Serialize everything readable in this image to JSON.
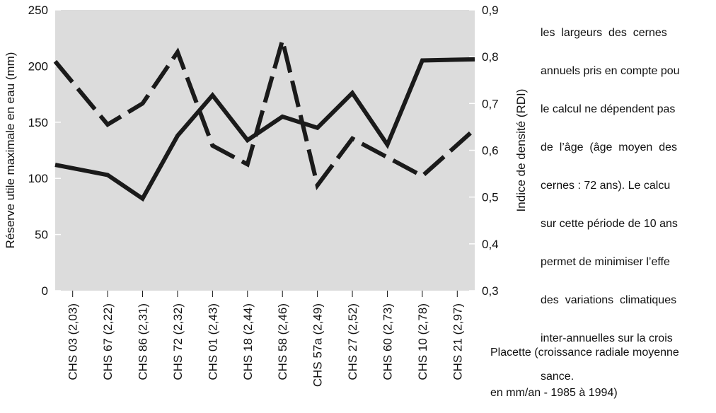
{
  "chart_data": {
    "type": "line",
    "categories": [
      "CHS 03 (2,03)",
      "CHS 67 (2,22)",
      "CHS 86 (2,31)",
      "CHS 72 (2,32)",
      "CHS 01 (2,43)",
      "CHS 18 (2,44)",
      "CHS 58 (2,46)",
      "CHS 57a (2,49)",
      "CHS 27 (2,52)",
      "CHS 60 (2,73)",
      "CHS 10 (2,78)",
      "CHS 21 (2,97)"
    ],
    "ylabel_left": "Réserve utile maximale en eau (mm)",
    "ylabel_right": "Indice de densité (RDI)",
    "xlabel": "Placette (croissance radiale moyenne en mm/an - 1985 à 1994)",
    "ylim_left": [
      0,
      250
    ],
    "ylim_right": [
      0.3,
      0.9
    ],
    "yticks_left": [
      "0",
      "50",
      "100",
      "150",
      "200",
      "250"
    ],
    "yticks_right": [
      "0,3",
      "0,4",
      "0,5",
      "0,6",
      "0,7",
      "0,8",
      "0,9"
    ],
    "series": [
      {
        "axis": "left",
        "style": "solid",
        "values": [
          112,
          103,
          82,
          138,
          174,
          134,
          155,
          145,
          176,
          130,
          205,
          206
        ]
      },
      {
        "axis": "right",
        "style": "dashed",
        "values": [
          0.79,
          0.655,
          0.7,
          0.81,
          0.61,
          0.57,
          0.835,
          0.525,
          0.625,
          0.585,
          0.545,
          0.645
        ]
      }
    ],
    "grid": false,
    "background": "#dcdcdc",
    "line_color": "#1a1a1a"
  },
  "side_text_lines": [
    "les  largeurs  des  cernes",
    "annuels pris en compte pou",
    "le calcul ne dépendent pas",
    "de  l’âge  (âge  moyen  des",
    "cernes : 72 ans). Le calcu",
    "sur cette période de 10 ans",
    "permet de minimiser l’effe",
    "des  variations  climatiques",
    "inter-annuelles sur la crois",
    "sance."
  ],
  "placette_lines": [
    "Placette (croissance radiale moyenne",
    "en mm/an - 1985 à 1994)"
  ]
}
